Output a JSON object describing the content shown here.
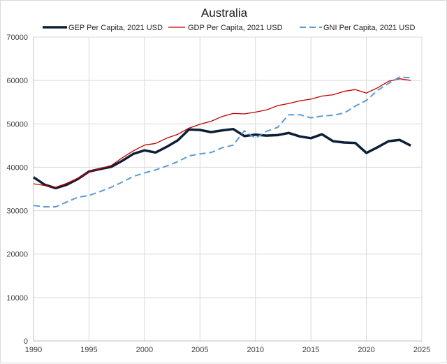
{
  "chart_data": {
    "type": "line",
    "title": "Australia",
    "xlabel": "",
    "ylabel": "",
    "xlim": [
      1990,
      2025
    ],
    "ylim": [
      0,
      70000
    ],
    "x_ticks": [
      "1990",
      "1995",
      "2000",
      "2005",
      "2010",
      "2015",
      "2020",
      "2025"
    ],
    "y_ticks": [
      "0",
      "10000",
      "20000",
      "30000",
      "40000",
      "50000",
      "60000",
      "70000"
    ],
    "grid": true,
    "legend_position": "top",
    "x": [
      1990,
      1991,
      1992,
      1993,
      1994,
      1995,
      1996,
      1997,
      1998,
      1999,
      2000,
      2001,
      2002,
      2003,
      2004,
      2005,
      2006,
      2007,
      2008,
      2009,
      2010,
      2011,
      2012,
      2013,
      2014,
      2015,
      2016,
      2017,
      2018,
      2019,
      2020,
      2021,
      2022,
      2023,
      2024
    ],
    "series": [
      {
        "name": "GEP Per Capita, 2021 USD",
        "color": "#0d1f36",
        "style": "solid-thick",
        "values": [
          37700,
          36000,
          35200,
          36000,
          37300,
          39000,
          39600,
          40100,
          41500,
          43100,
          43900,
          43400,
          44700,
          46200,
          48700,
          48600,
          48100,
          48500,
          48800,
          47200,
          47500,
          47300,
          47400,
          47900,
          47100,
          46700,
          47600,
          46000,
          45700,
          45600,
          43300,
          44600,
          46000,
          46300,
          45000
        ]
      },
      {
        "name": "GDP Per Capita, 2021 USD",
        "color": "#c00000",
        "style": "solid-thin",
        "values": [
          36200,
          35800,
          35400,
          36300,
          37500,
          38900,
          39700,
          40400,
          42200,
          43800,
          45100,
          45500,
          46700,
          47600,
          49000,
          49900,
          50600,
          51700,
          52400,
          52300,
          52700,
          53200,
          54200,
          54700,
          55300,
          55700,
          56400,
          56700,
          57500,
          57900,
          57100,
          58300,
          59800,
          60400,
          60000
        ]
      },
      {
        "name": "GNI Per Capita, 2021 USD",
        "color": "#5b9bd5",
        "style": "dashed",
        "values": [
          31200,
          30900,
          30900,
          32000,
          33100,
          33500,
          34400,
          35400,
          36600,
          37900,
          38700,
          39400,
          40300,
          41300,
          42600,
          43100,
          43400,
          44500,
          45100,
          48400,
          46700,
          48300,
          49200,
          52100,
          52100,
          51400,
          51800,
          52000,
          52500,
          54100,
          55400,
          57700,
          59300,
          60800,
          60600
        ]
      }
    ]
  }
}
